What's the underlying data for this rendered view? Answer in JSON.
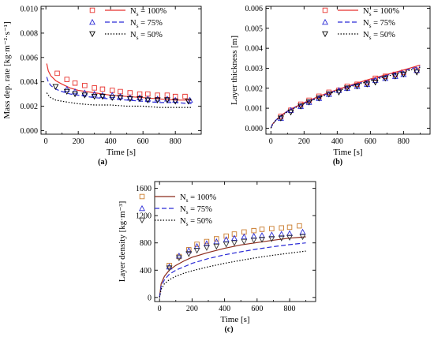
{
  "chart_data": [
    {
      "type": "line",
      "panel": "(a)",
      "xlabel": "Time [s]",
      "ylabel": "Mass dep. rate [kg·m⁻²·s⁻¹]",
      "xlim": [
        -30,
        960
      ],
      "ylim": [
        -0.0003,
        0.0102
      ],
      "xticks": [
        "0",
        "200",
        "400",
        "600",
        "800"
      ],
      "yticks": [
        "0.000",
        "0.002",
        "0.004",
        "0.006",
        "0.008",
        "0.010"
      ],
      "legend_position": "top-right",
      "series": [
        {
          "name": "Ns = 100%",
          "kind": "line",
          "color": "#e8322d",
          "dash": "solid",
          "x": [
            5,
            15,
            30,
            60,
            100,
            150,
            200,
            300,
            400,
            500,
            600,
            700,
            800,
            900
          ],
          "y": [
            0.0055,
            0.0049,
            0.0045,
            0.0041,
            0.0038,
            0.0035,
            0.0033,
            0.0031,
            0.0029,
            0.0028,
            0.0027,
            0.0026,
            0.0025,
            0.0025
          ]
        },
        {
          "name": "Ns = 75%",
          "kind": "line",
          "color": "#2b2bd6",
          "dash": "6,3",
          "x": [
            5,
            15,
            30,
            60,
            100,
            150,
            200,
            300,
            400,
            500,
            600,
            700,
            800,
            900
          ],
          "y": [
            0.0044,
            0.004,
            0.0037,
            0.0034,
            0.0032,
            0.003,
            0.0029,
            0.0027,
            0.0026,
            0.0025,
            0.0024,
            0.0023,
            0.0023,
            0.0022
          ]
        },
        {
          "name": "Ns = 50%",
          "kind": "line",
          "color": "#000000",
          "dash": "1.5,2",
          "x": [
            5,
            15,
            30,
            60,
            100,
            150,
            200,
            300,
            400,
            500,
            600,
            700,
            800,
            900
          ],
          "y": [
            0.0031,
            0.0029,
            0.0027,
            0.0025,
            0.0024,
            0.0023,
            0.0022,
            0.0021,
            0.0021,
            0.002,
            0.002,
            0.0019,
            0.0019,
            0.0019
          ]
        },
        {
          "name": "",
          "kind": "points",
          "marker": "square",
          "color": "#e8322d",
          "x": [
            70,
            130,
            180,
            240,
            300,
            350,
            410,
            460,
            520,
            580,
            630,
            690,
            750,
            800,
            860
          ],
          "y": [
            0.0047,
            0.0042,
            0.0039,
            0.0037,
            0.0035,
            0.0034,
            0.0033,
            0.0032,
            0.0031,
            0.003,
            0.003,
            0.0029,
            0.0029,
            0.0028,
            0.0028
          ]
        },
        {
          "name": "",
          "kind": "points",
          "marker": "triangle-up",
          "color": "#2b2bd6",
          "x": [
            130,
            180,
            240,
            300,
            350,
            410,
            460,
            520,
            580,
            630,
            690,
            750,
            800,
            890
          ],
          "y": [
            0.0034,
            0.0032,
            0.0031,
            0.003,
            0.0029,
            0.0029,
            0.0028,
            0.0027,
            0.0027,
            0.0026,
            0.0026,
            0.0026,
            0.0025,
            0.0025
          ]
        },
        {
          "name": "",
          "kind": "points",
          "marker": "triangle-down",
          "color": "#000000",
          "x": [
            60,
            130,
            180,
            240,
            300,
            350,
            410,
            460,
            520,
            580,
            630,
            690,
            750,
            800,
            880
          ],
          "y": [
            0.0036,
            0.0032,
            0.003,
            0.0029,
            0.0028,
            0.0028,
            0.0027,
            0.0027,
            0.0026,
            0.0026,
            0.0025,
            0.0025,
            0.0025,
            0.0024,
            0.0024
          ]
        }
      ]
    },
    {
      "type": "line",
      "panel": "(b)",
      "xlabel": "Time [s]",
      "ylabel": "Layer thickness [m]",
      "xlim": [
        -30,
        960
      ],
      "ylim": [
        -0.0003,
        0.0061
      ],
      "xticks": [
        "0",
        "200",
        "400",
        "600",
        "800"
      ],
      "yticks": [
        "0.000",
        "0.001",
        "0.002",
        "0.003",
        "0.004",
        "0.005",
        "0.006"
      ],
      "legend_position": "top-right",
      "series": [
        {
          "name": "Ns = 100%",
          "kind": "line",
          "color": "#e8322d",
          "dash": "solid",
          "x": [
            0,
            10,
            30,
            60,
            100,
            150,
            200,
            300,
            400,
            500,
            600,
            700,
            800,
            900
          ],
          "y": [
            0.0,
            0.0002,
            0.0004,
            0.00063,
            0.00086,
            0.00108,
            0.00128,
            0.00163,
            0.00193,
            0.00221,
            0.00246,
            0.00269,
            0.00291,
            0.00316
          ]
        },
        {
          "name": "Ns = 75%",
          "kind": "line",
          "color": "#2b2bd6",
          "dash": "6,3",
          "x": [
            0,
            10,
            30,
            60,
            100,
            150,
            200,
            300,
            400,
            500,
            600,
            700,
            800,
            900
          ],
          "y": [
            0.0,
            0.0002,
            0.0004,
            0.00062,
            0.00084,
            0.00106,
            0.00125,
            0.0016,
            0.0019,
            0.00217,
            0.00242,
            0.00265,
            0.00287,
            0.0031
          ]
        },
        {
          "name": "Ns = 50%",
          "kind": "line",
          "color": "#000000",
          "dash": "1.5,2",
          "x": [
            0,
            10,
            30,
            60,
            100,
            150,
            200,
            300,
            400,
            500,
            600,
            700,
            800,
            900
          ],
          "y": [
            0.0,
            0.00019,
            0.00039,
            0.0006,
            0.00082,
            0.00104,
            0.00122,
            0.00157,
            0.00186,
            0.00213,
            0.00238,
            0.0026,
            0.00282,
            0.00304
          ]
        },
        {
          "name": "",
          "kind": "points",
          "marker": "square",
          "color": "#e8322d",
          "x": [
            60,
            120,
            180,
            230,
            290,
            350,
            410,
            460,
            520,
            580,
            630,
            690,
            750,
            800,
            880
          ],
          "y": [
            0.0006,
            0.0009,
            0.0012,
            0.0014,
            0.0016,
            0.0018,
            0.0019,
            0.0021,
            0.0022,
            0.0023,
            0.0025,
            0.0026,
            0.0027,
            0.0028,
            0.0029
          ]
        },
        {
          "name": "",
          "kind": "points",
          "marker": "triangle-up",
          "color": "#2b2bd6",
          "x": [
            60,
            120,
            180,
            230,
            290,
            350,
            410,
            460,
            520,
            580,
            630,
            690,
            750,
            800,
            880
          ],
          "y": [
            0.0005,
            0.0009,
            0.0011,
            0.0013,
            0.0015,
            0.0017,
            0.0019,
            0.002,
            0.0021,
            0.0022,
            0.0024,
            0.0025,
            0.0026,
            0.0027,
            0.0029
          ]
        },
        {
          "name": "",
          "kind": "points",
          "marker": "triangle-down",
          "color": "#000000",
          "x": [
            60,
            120,
            180,
            230,
            290,
            350,
            410,
            460,
            520,
            580,
            630,
            690,
            750,
            800,
            880
          ],
          "y": [
            0.0005,
            0.0008,
            0.0011,
            0.0013,
            0.0015,
            0.0017,
            0.0018,
            0.002,
            0.0021,
            0.0022,
            0.0023,
            0.0025,
            0.0026,
            0.0027,
            0.0028
          ]
        }
      ]
    },
    {
      "type": "line",
      "panel": "(c)",
      "xlabel": "Time [s]",
      "ylabel": "Layer density [kg·m⁻³]",
      "xlim": [
        -30,
        960
      ],
      "ylim": [
        -60,
        1700
      ],
      "xticks": [
        "0",
        "200",
        "400",
        "600",
        "800"
      ],
      "yticks": [
        "0",
        "400",
        "800",
        "1200",
        "1600"
      ],
      "legend_position": "top-left",
      "series": [
        {
          "name": "Ns = 100%",
          "kind": "line",
          "color": "#8b2a1a",
          "dash": "solid",
          "x": [
            0,
            10,
            30,
            60,
            100,
            150,
            200,
            300,
            400,
            500,
            600,
            700,
            800,
            900
          ],
          "y": [
            0,
            200,
            310,
            400,
            470,
            535,
            590,
            660,
            720,
            770,
            805,
            840,
            870,
            890
          ]
        },
        {
          "name": "Ns = 75%",
          "kind": "line",
          "color": "#2b2bd6",
          "dash": "6,3",
          "x": [
            0,
            10,
            30,
            60,
            100,
            150,
            200,
            300,
            400,
            500,
            600,
            700,
            800,
            900
          ],
          "y": [
            0,
            160,
            260,
            340,
            400,
            450,
            500,
            570,
            625,
            670,
            710,
            745,
            775,
            800
          ]
        },
        {
          "name": "Ns = 50%",
          "kind": "line",
          "color": "#000000",
          "dash": "1.5,2",
          "x": [
            0,
            10,
            30,
            60,
            100,
            150,
            200,
            300,
            400,
            500,
            600,
            700,
            800,
            900
          ],
          "y": [
            0,
            120,
            200,
            260,
            310,
            355,
            390,
            450,
            500,
            545,
            585,
            620,
            650,
            680
          ]
        },
        {
          "name": "",
          "kind": "points",
          "marker": "square",
          "color": "#c97a2a",
          "x": [
            60,
            120,
            180,
            230,
            290,
            350,
            410,
            460,
            520,
            580,
            630,
            690,
            750,
            800,
            860
          ],
          "y": [
            470,
            600,
            700,
            780,
            820,
            860,
            900,
            930,
            960,
            980,
            1000,
            1010,
            1020,
            1030,
            1050
          ]
        },
        {
          "name": "",
          "kind": "points",
          "marker": "triangle-up",
          "color": "#2b2bd6",
          "x": [
            60,
            120,
            180,
            230,
            290,
            350,
            410,
            460,
            520,
            580,
            630,
            690,
            750,
            800,
            880
          ],
          "y": [
            450,
            610,
            690,
            750,
            790,
            820,
            850,
            870,
            890,
            900,
            910,
            920,
            930,
            940,
            960
          ]
        },
        {
          "name": "",
          "kind": "points",
          "marker": "triangle-down",
          "color": "#333333",
          "x": [
            60,
            120,
            180,
            230,
            290,
            350,
            410,
            460,
            520,
            580,
            630,
            690,
            750,
            800,
            880
          ],
          "y": [
            430,
            580,
            640,
            690,
            730,
            750,
            780,
            800,
            820,
            840,
            850,
            860,
            870,
            880,
            890
          ]
        }
      ]
    }
  ]
}
